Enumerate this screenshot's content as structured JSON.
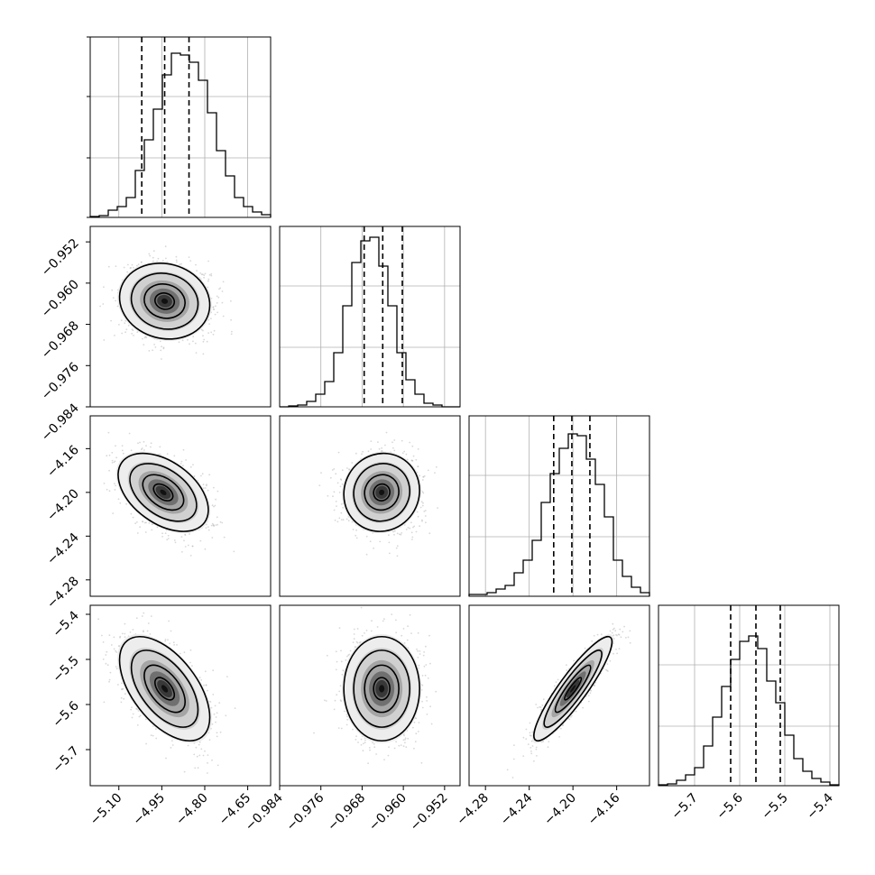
{
  "figure": {
    "type": "corner_plot",
    "background": "#ffffff",
    "hist_color": "#000000",
    "quantile_line_style": "dashed",
    "contour_color": "#000000",
    "density_cmap": "greys",
    "grid": true
  },
  "chart_data": {
    "type": "corner",
    "parameters": [
      {
        "index": 0,
        "range": [
          -5.2,
          -4.57
        ],
        "ticks": [
          -5.1,
          -4.95,
          -4.8,
          -4.65
        ],
        "tick_labels": [
          "−5.10",
          "−4.95",
          "−4.80",
          "−4.65"
        ],
        "quantiles": [
          -5.02,
          -4.94,
          -4.855
        ],
        "hist_bins": [
          0.005,
          0.01,
          0.04,
          0.06,
          0.11,
          0.26,
          0.43,
          0.6,
          0.79,
          0.91,
          0.9,
          0.86,
          0.76,
          0.58,
          0.37,
          0.23,
          0.11,
          0.06,
          0.03,
          0.015
        ]
      },
      {
        "index": 1,
        "range": [
          -0.984,
          -0.949
        ],
        "ticks": [
          -0.984,
          -0.976,
          -0.968,
          -0.96,
          -0.952
        ],
        "tick_labels": [
          "−0.984",
          "−0.976",
          "−0.968",
          "−0.960",
          "−0.952"
        ],
        "quantiles": [
          -0.9676,
          -0.964,
          -0.9602
        ],
        "hist_bins": [
          0.0,
          0.005,
          0.01,
          0.03,
          0.07,
          0.14,
          0.3,
          0.56,
          0.8,
          0.92,
          0.94,
          0.78,
          0.56,
          0.3,
          0.15,
          0.07,
          0.02,
          0.01,
          0.0,
          0.0
        ]
      },
      {
        "index": 2,
        "range": [
          -4.295,
          -4.13
        ],
        "ticks": [
          -4.28,
          -4.24,
          -4.2,
          -4.16
        ],
        "tick_labels": [
          "−4.28",
          "−4.24",
          "−4.20",
          "−4.16"
        ],
        "quantiles": [
          -4.2176,
          -4.201,
          -4.1845
        ],
        "hist_bins": [
          0.01,
          0.01,
          0.02,
          0.04,
          0.06,
          0.13,
          0.2,
          0.31,
          0.52,
          0.68,
          0.82,
          0.9,
          0.89,
          0.76,
          0.62,
          0.44,
          0.2,
          0.11,
          0.05,
          0.02
        ]
      },
      {
        "index": 3,
        "range": [
          -5.78,
          -5.38
        ],
        "ticks": [
          -5.7,
          -5.6,
          -5.5,
          -5.4
        ],
        "tick_labels": [
          "−5.7",
          "−5.6",
          "−5.5",
          "−5.4"
        ],
        "quantiles": [
          -5.62,
          -5.564,
          -5.51
        ],
        "hist_bins": [
          0.005,
          0.01,
          0.03,
          0.06,
          0.1,
          0.22,
          0.38,
          0.55,
          0.7,
          0.8,
          0.83,
          0.76,
          0.58,
          0.46,
          0.28,
          0.15,
          0.08,
          0.04,
          0.02,
          0.005
        ]
      }
    ],
    "pairs": [
      {
        "x": 0,
        "y": 1,
        "center": [
          -4.94,
          -0.9635
        ],
        "spread": [
          0.075,
          0.0035
        ],
        "rho": -0.1
      },
      {
        "x": 0,
        "y": 2,
        "center": [
          -4.945,
          -4.2
        ],
        "spread": [
          0.075,
          0.017
        ],
        "rho": -0.45
      },
      {
        "x": 1,
        "y": 2,
        "center": [
          -0.9642,
          -4.2
        ],
        "spread": [
          0.0035,
          0.017
        ],
        "rho": 0.05
      },
      {
        "x": 0,
        "y": 3,
        "center": [
          -4.94,
          -5.565
        ],
        "spread": [
          0.075,
          0.055
        ],
        "rho": -0.55
      },
      {
        "x": 1,
        "y": 3,
        "center": [
          -0.9642,
          -5.565
        ],
        "spread": [
          0.0035,
          0.055
        ],
        "rho": 0.0
      },
      {
        "x": 2,
        "y": 3,
        "center": [
          -4.2,
          -5.565
        ],
        "spread": [
          0.017,
          0.055
        ],
        "rho": 0.9
      }
    ]
  }
}
